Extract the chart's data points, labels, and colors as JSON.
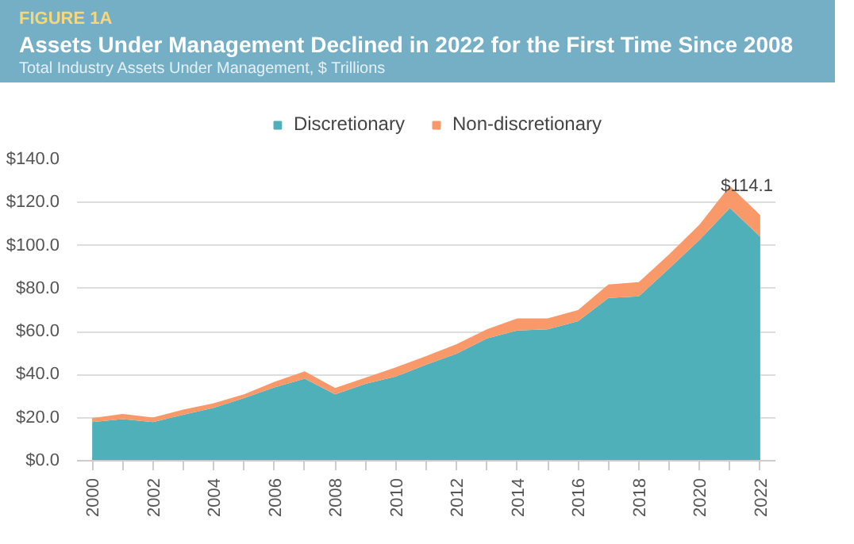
{
  "chart_data": {
    "type": "area",
    "stacked": true,
    "title": "Assets Under Management Declined in 2022 for the First Time Since 2008",
    "subtitle": "Total Industry Assets Under Management, $ Trillions",
    "annotations": [
      "FIGURE 1A",
      {
        "text": "$114.1",
        "x": 2022,
        "y": 114.1
      }
    ],
    "x": [
      2000,
      2001,
      2002,
      2003,
      2004,
      2005,
      2006,
      2007,
      2008,
      2009,
      2010,
      2011,
      2012,
      2013,
      2014,
      2015,
      2016,
      2017,
      2018,
      2019,
      2020,
      2021,
      2022
    ],
    "series": [
      {
        "name": "Discretionary",
        "color": "#4fb0ba",
        "values": [
          18.0,
          19.3,
          18.0,
          21.4,
          24.6,
          29.1,
          34.1,
          38.1,
          30.9,
          35.7,
          39.1,
          44.7,
          49.7,
          56.8,
          60.5,
          61.1,
          64.8,
          75.6,
          76.4,
          89.3,
          102.6,
          117.4,
          104.1
        ]
      },
      {
        "name": "Non-discretionary",
        "color": "#f9996a",
        "values": [
          1.8,
          2.4,
          2.1,
          2.4,
          2.1,
          1.8,
          2.6,
          3.4,
          2.9,
          2.9,
          4.3,
          3.9,
          4.5,
          4.3,
          5.6,
          5.0,
          5.2,
          6.3,
          6.6,
          6.6,
          7.1,
          10.3,
          10.0
        ]
      }
    ],
    "xlim": [
      1999.5,
      2022.5
    ],
    "xticks": [
      2000,
      {
        "value": 2001,
        "label": null
      },
      2002,
      {
        "value": 2003,
        "label": null
      },
      2004,
      {
        "value": 2005,
        "label": null
      },
      2006,
      {
        "value": 2007,
        "label": null
      },
      2008,
      {
        "value": 2009,
        "label": null
      },
      2010,
      {
        "value": 2011,
        "label": null
      },
      2012,
      {
        "value": 2013,
        "label": null
      },
      2014,
      {
        "value": 2015,
        "label": null
      },
      2016,
      {
        "value": 2017,
        "label": null
      },
      2018,
      {
        "value": 2019,
        "label": null
      },
      2020,
      {
        "value": 2021,
        "label": null
      },
      2022
    ],
    "ylim": [
      0,
      140
    ],
    "yticks": [
      {
        "value": 0,
        "label": "$0.0"
      },
      {
        "value": 20,
        "label": "$20.0"
      },
      {
        "value": 40,
        "label": "$40.0"
      },
      {
        "value": 60,
        "label": "$60.0"
      },
      {
        "value": 80,
        "label": "$80.0"
      },
      {
        "value": 100,
        "label": "$100.0"
      },
      {
        "value": 120,
        "label": "$120.0"
      },
      {
        "value": 140,
        "label": "$140.0"
      }
    ],
    "grid": "y",
    "legend": "top"
  }
}
